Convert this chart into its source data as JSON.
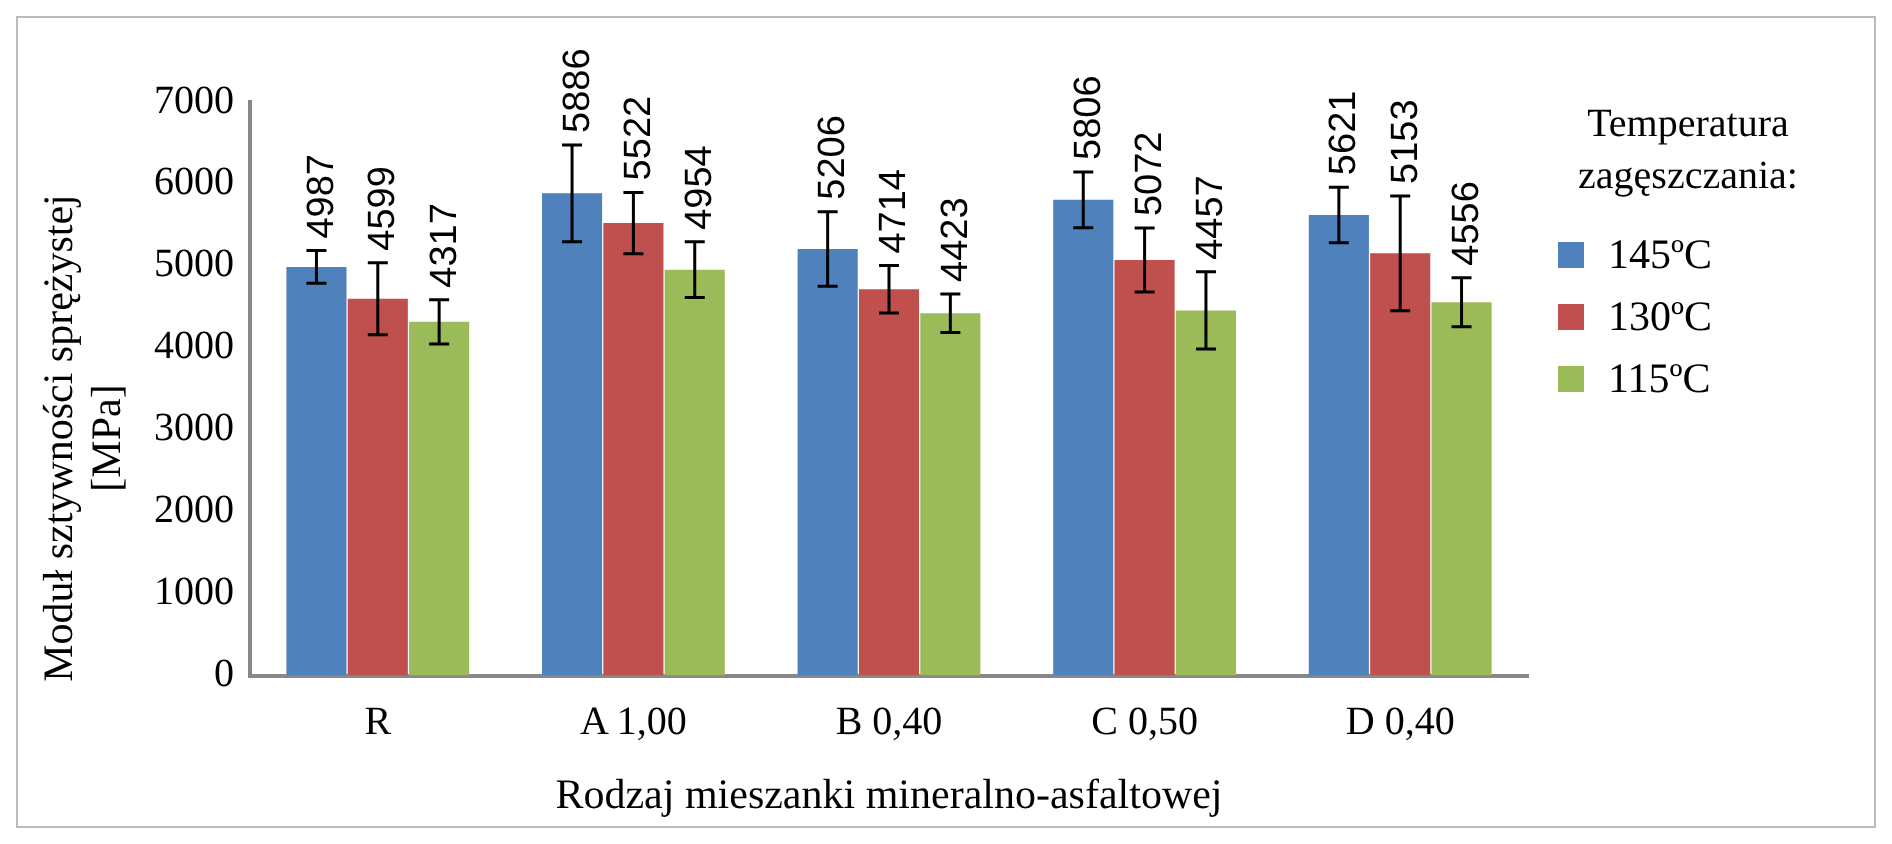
{
  "chart_data": {
    "type": "bar",
    "xlabel": "Rodzaj mieszanki mineralno-asfaltowej",
    "ylabel": "Moduł sztywności sprężystej [MPa]",
    "legend_title": "Temperatura zagęszczania:",
    "categories": [
      "R",
      "A 1,00",
      "B 0,40",
      "C 0,50",
      "D 0,40"
    ],
    "series": [
      {
        "name": "145ºC",
        "color": "#4f81bd",
        "values": [
          4987,
          5886,
          5206,
          5806,
          5621
        ],
        "errors": [
          200,
          590,
          455,
          340,
          340
        ]
      },
      {
        "name": "130ºC",
        "color": "#c0504d",
        "values": [
          4599,
          5522,
          4714,
          5072,
          5153
        ],
        "errors": [
          440,
          375,
          290,
          390,
          700
        ]
      },
      {
        "name": "115ºC",
        "color": "#9bbb59",
        "values": [
          4317,
          4954,
          4423,
          4457,
          4556
        ],
        "errors": [
          270,
          340,
          235,
          470,
          300
        ]
      }
    ],
    "ylim": [
      0,
      7000
    ],
    "yticks": [
      0,
      1000,
      2000,
      3000,
      4000,
      5000,
      6000,
      7000
    ],
    "grid": false,
    "legend": "right",
    "data_labels": true
  }
}
